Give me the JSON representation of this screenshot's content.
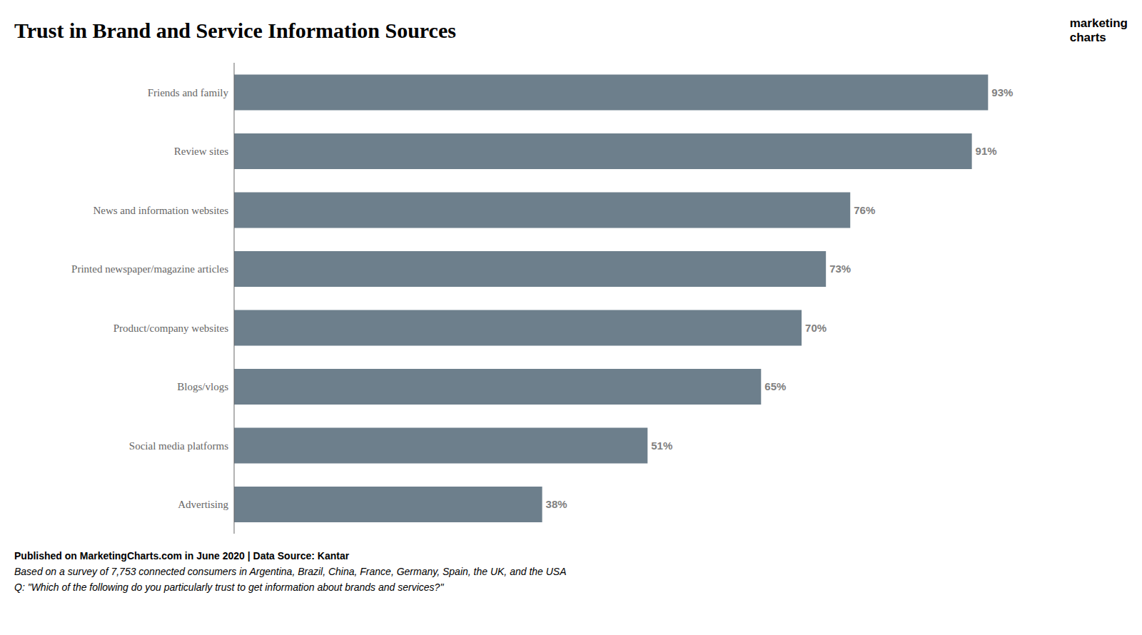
{
  "chart_data": {
    "type": "bar",
    "orientation": "horizontal",
    "title": "Trust in Brand and Service Information Sources",
    "categories": [
      "Friends and family",
      "Review sites",
      "News and information websites",
      "Printed newspaper/magazine articles",
      "Product/company websites",
      "Blogs/vlogs",
      "Social media platforms",
      "Advertising"
    ],
    "values": [
      93,
      91,
      76,
      73,
      70,
      65,
      51,
      38
    ],
    "value_labels": [
      "93%",
      "91%",
      "76%",
      "73%",
      "70%",
      "65%",
      "51%",
      "38%"
    ],
    "data_labels": true,
    "color": "#6d7f8c",
    "xlim": [
      0,
      106
    ],
    "tick_labels": "y",
    "grid": false,
    "annotations": [
      "Published on MarketingCharts.com in June 2020 | Data Source: Kantar",
      "Based on a survey of 7,753 connected consumers in Argentina, Brazil, China, France, Germany, Spain, the UK, and the USA",
      "Q: \"Which of the following do you particularly trust to get information about brands and services?\"",
      "marketing",
      "charts"
    ]
  }
}
